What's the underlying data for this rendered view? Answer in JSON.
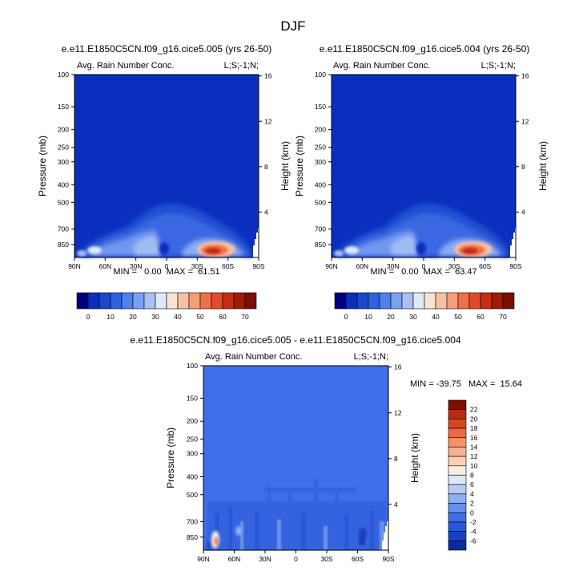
{
  "main_title": "DJF",
  "colors": {
    "deep_blue": "#0a2fbf",
    "background_blue": "#1a48cc",
    "diff_background": "#3f6ee8"
  },
  "chart_data": [
    {
      "type": "heatmap",
      "id": "panel-a",
      "title": "e.e11.E1850C5CN.f09_g16.cice5.005 (yrs 26-50)",
      "subtitle_left": "Avg. Rain Number Conc.",
      "subtitle_right": "L;S;-1;N;",
      "xlabel": "",
      "ylabel": "Pressure (mb)",
      "ylabel_right": "Height (km)",
      "x_ticks": [
        "90N",
        "60N",
        "30N",
        "0",
        "30S",
        "60S",
        "90S"
      ],
      "y_ticks": [
        "100",
        "150",
        "200",
        "250",
        "300",
        "400",
        "500",
        "700",
        "850"
      ],
      "y_ticks_right": [
        "16",
        "12",
        "8",
        "4"
      ],
      "min_label": "MIN =   0.00  MAX =  61.51",
      "min": 0.0,
      "max": 61.51
    },
    {
      "type": "heatmap",
      "id": "panel-b",
      "title": "e.e11.E1850C5CN.f09_g16.cice5.004 (yrs 26-50)",
      "subtitle_left": "Avg. Rain Number Conc.",
      "subtitle_right": "L;S;-1;N;",
      "xlabel": "",
      "ylabel": "Pressure (mb)",
      "ylabel_right": "Height (km)",
      "x_ticks": [
        "90N",
        "60N",
        "30N",
        "0",
        "30S",
        "60S",
        "90S"
      ],
      "y_ticks": [
        "100",
        "150",
        "200",
        "250",
        "300",
        "400",
        "500",
        "700",
        "850"
      ],
      "y_ticks_right": [
        "16",
        "12",
        "8",
        "4"
      ],
      "min_label": "MIN =   0.00  MAX =  63.47",
      "min": 0.0,
      "max": 63.47
    },
    {
      "type": "heatmap",
      "id": "panel-diff",
      "title": "e.e11.E1850C5CN.f09_g16.cice5.005 - e.e11.E1850C5CN.f09_g16.cice5.004",
      "subtitle_left": "Avg. Rain Number Conc.",
      "subtitle_right": "L;S;-1;N;",
      "xlabel": "",
      "ylabel": "Pressure (mb)",
      "ylabel_right": "Height (km)",
      "x_ticks": [
        "90N",
        "60N",
        "30N",
        "0",
        "30S",
        "60S",
        "90S"
      ],
      "y_ticks": [
        "100",
        "150",
        "200",
        "250",
        "300",
        "400",
        "500",
        "700",
        "850"
      ],
      "y_ticks_right": [
        "16",
        "12",
        "8",
        "4"
      ],
      "min_label": "MIN = -39.75   MAX =  15.64",
      "min": -39.75,
      "max": 15.64
    }
  ],
  "colorbar_main": {
    "labels": [
      "0",
      "10",
      "20",
      "30",
      "40",
      "50",
      "60",
      "70"
    ],
    "colors": [
      "#00007a",
      "#0a2fbf",
      "#1a48cc",
      "#2f62e0",
      "#4f80ec",
      "#7aa0f0",
      "#a8c0f5",
      "#dde8f8",
      "#fbe2d2",
      "#f8c0a2",
      "#f59f7a",
      "#ee7048",
      "#e04c28",
      "#c82c10",
      "#9e1b06",
      "#7a1000"
    ]
  },
  "colorbar_diff": {
    "labels": [
      "22",
      "20",
      "18",
      "16",
      "14",
      "12",
      "10",
      "8",
      "6",
      "4",
      "2",
      "0",
      "-2",
      "-4",
      "-6"
    ],
    "colors": [
      "#7a1000",
      "#b82c0e",
      "#d84422",
      "#ec6a40",
      "#f5916a",
      "#f8b090",
      "#fbcfb4",
      "#fbebe2",
      "#dde8f8",
      "#b5cbf5",
      "#8eb0f0",
      "#6690ec",
      "#3f6ee8",
      "#2a56d8",
      "#1a3fc0",
      "#0a2a9e"
    ]
  }
}
